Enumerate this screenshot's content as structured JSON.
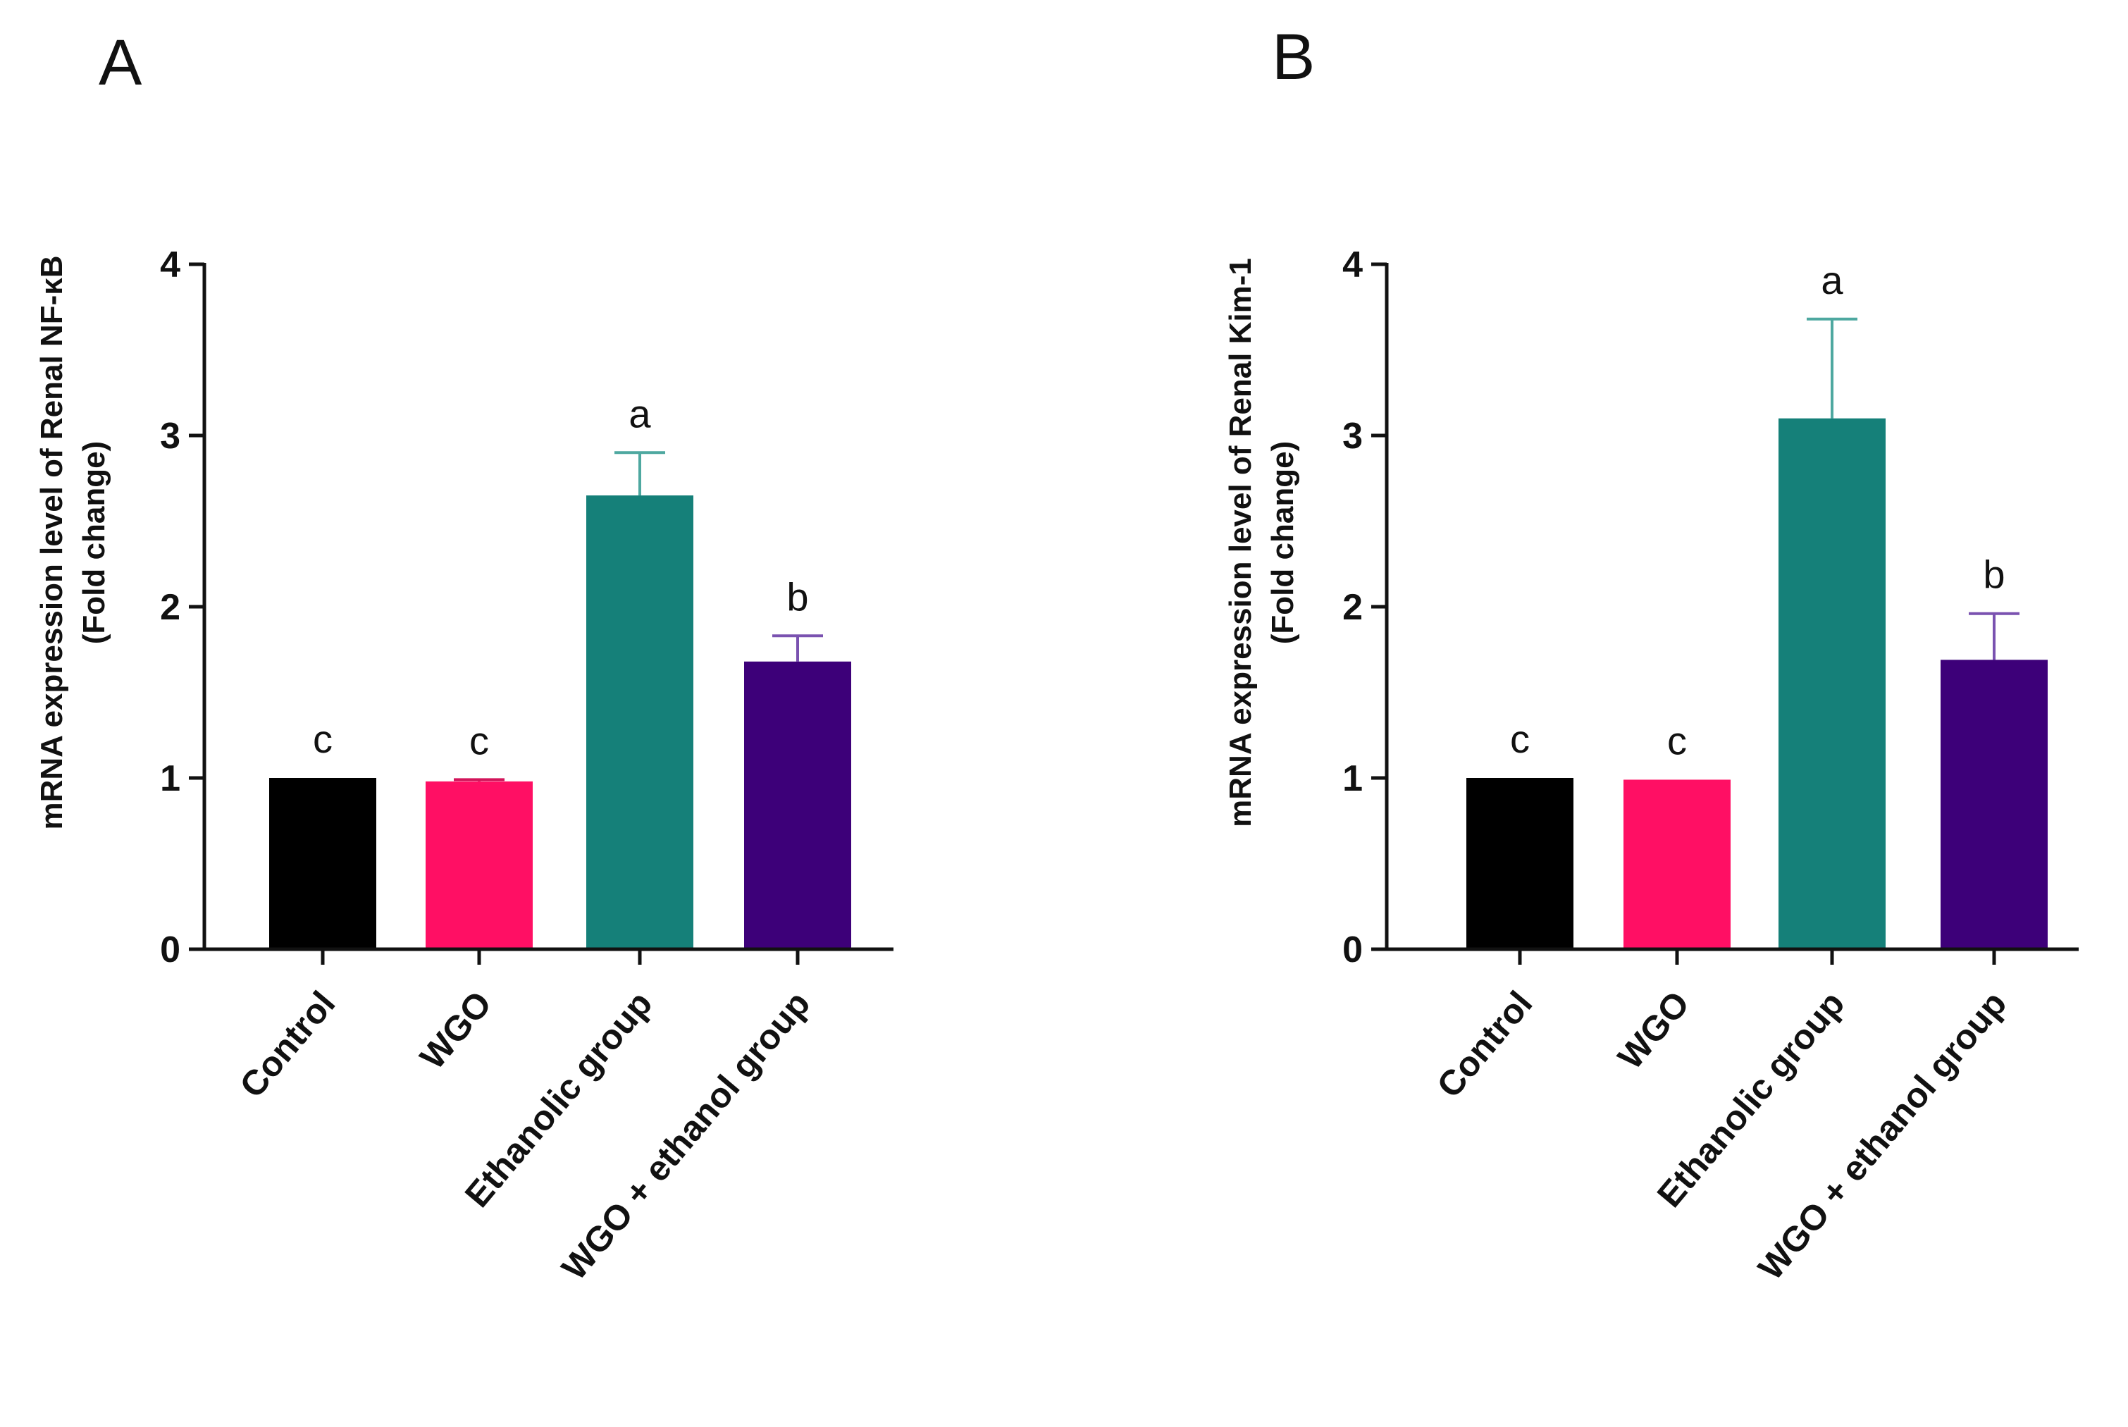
{
  "colors": {
    "control": "#000000",
    "wgo": "#ff0f64",
    "ethanolic": "#158079",
    "wgo_ethanol": "#3d0079",
    "axis": "#111111",
    "error_control": "#222222",
    "error_wgo": "#d2145a",
    "error_ethanolic": "#4ea8a0",
    "error_wgo_ethanol": "#7a52b0"
  },
  "chart_data": [
    {
      "panel": "A",
      "type": "bar",
      "title": "",
      "ylabel_line1": "mRNA expression level of  Renal NF-κB",
      "ylabel_line2": "(Fold change)",
      "xlabel": "",
      "ylim": [
        0,
        4
      ],
      "yticks": [
        "0",
        "1",
        "2",
        "3",
        "4"
      ],
      "categories": [
        "Control",
        "WGO",
        "Ethanolic group",
        "WGO + ethanol group"
      ],
      "values": [
        1.0,
        0.98,
        2.65,
        1.68
      ],
      "errors": [
        0.0,
        0.01,
        0.25,
        0.15
      ],
      "significance": [
        "c",
        "c",
        "a",
        "b"
      ]
    },
    {
      "panel": "B",
      "type": "bar",
      "title": "",
      "ylabel_line1": "mRNA expression level of  Renal Kim-1",
      "ylabel_line2": "(Fold change)",
      "xlabel": "",
      "ylim": [
        0,
        4
      ],
      "yticks": [
        "0",
        "1",
        "2",
        "3",
        "4"
      ],
      "categories": [
        "Control",
        "WGO",
        "Ethanolic group",
        "WGO + ethanol group"
      ],
      "values": [
        1.0,
        0.99,
        3.1,
        1.69
      ],
      "errors": [
        0.0,
        0.0,
        0.58,
        0.27
      ],
      "significance": [
        "c",
        "c",
        "a",
        "b"
      ]
    }
  ]
}
